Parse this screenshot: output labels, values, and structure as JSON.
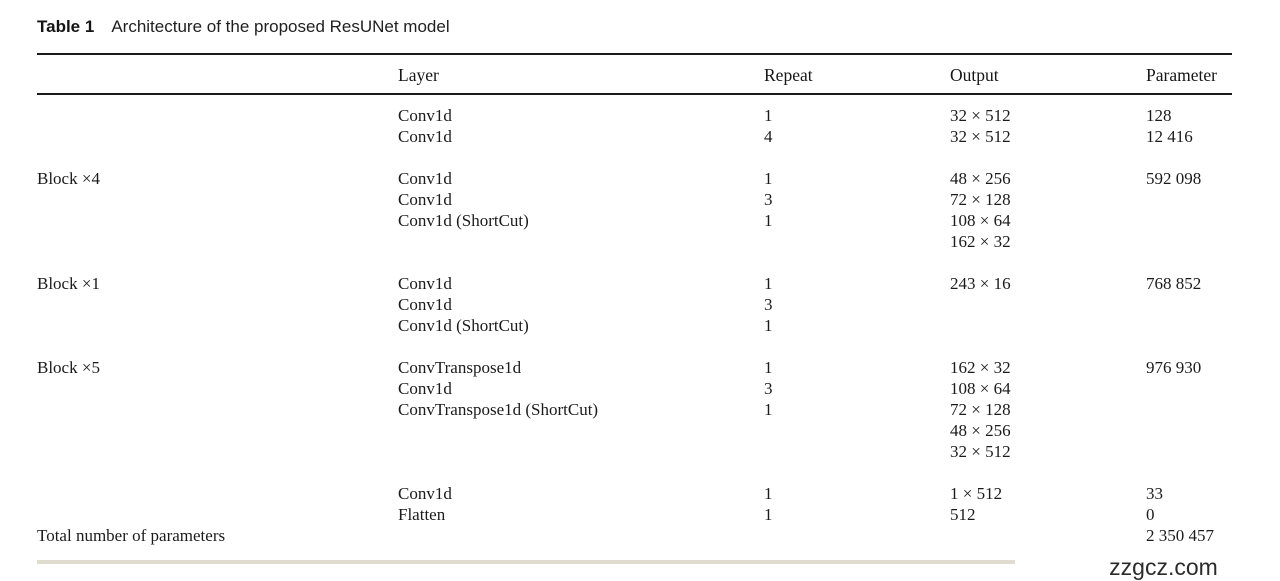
{
  "caption": {
    "label": "Table 1",
    "title": "Architecture of the proposed ResUNet model"
  },
  "table": {
    "headers": [
      "",
      "Layer",
      "Repeat",
      "Output",
      "Parameter"
    ],
    "groups": [
      {
        "block": "",
        "rows": [
          {
            "layer": "Conv1d",
            "repeat": "1",
            "output": "32 × 512",
            "parameter": "128"
          },
          {
            "layer": "Conv1d",
            "repeat": "4",
            "output": "32 × 512",
            "parameter": "12 416"
          }
        ]
      },
      {
        "block": "Block ×4",
        "rows": [
          {
            "layer": "Conv1d",
            "repeat": "1",
            "output": "48 × 256",
            "parameter": "592 098"
          },
          {
            "layer": "Conv1d",
            "repeat": "3",
            "output": "72 × 128",
            "parameter": ""
          },
          {
            "layer": "Conv1d (ShortCut)",
            "repeat": "1",
            "output": "108 × 64",
            "parameter": ""
          },
          {
            "layer": "",
            "repeat": "",
            "output": "162 × 32",
            "parameter": ""
          }
        ]
      },
      {
        "block": "Block ×1",
        "rows": [
          {
            "layer": "Conv1d",
            "repeat": "1",
            "output": "243 × 16",
            "parameter": "768 852"
          },
          {
            "layer": "Conv1d",
            "repeat": "3",
            "output": "",
            "parameter": ""
          },
          {
            "layer": "Conv1d (ShortCut)",
            "repeat": "1",
            "output": "",
            "parameter": ""
          }
        ]
      },
      {
        "block": "Block ×5",
        "rows": [
          {
            "layer": "ConvTranspose1d",
            "repeat": "1",
            "output": "162 × 32",
            "parameter": "976 930"
          },
          {
            "layer": "Conv1d",
            "repeat": "3",
            "output": "108 × 64",
            "parameter": ""
          },
          {
            "layer": "ConvTranspose1d (ShortCut)",
            "repeat": "1",
            "output": "72 × 128",
            "parameter": ""
          },
          {
            "layer": "",
            "repeat": "",
            "output": "48 × 256",
            "parameter": ""
          },
          {
            "layer": "",
            "repeat": "",
            "output": "32 × 512",
            "parameter": ""
          }
        ]
      },
      {
        "block": "",
        "rows": [
          {
            "layer": "Conv1d",
            "repeat": "1",
            "output": "1 × 512",
            "parameter": "33"
          },
          {
            "layer": "Flatten",
            "repeat": "1",
            "output": "512",
            "parameter": "0"
          }
        ]
      }
    ],
    "footer": {
      "label": "Total number of parameters",
      "parameter": "2 350 457"
    }
  },
  "watermark": "zzgcz.com",
  "colors": {
    "text": "#1b1b1b",
    "rule": "#1a1a1a",
    "bottom_rule": "#e0ddd0"
  }
}
